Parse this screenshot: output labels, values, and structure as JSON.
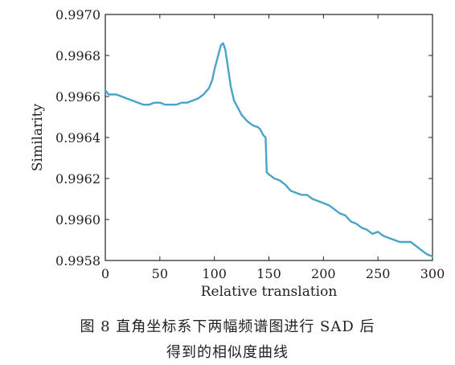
{
  "chart_data": {
    "type": "line",
    "title": "",
    "xlabel": "Relative translation",
    "ylabel": "Similarity",
    "xlim": [
      0,
      300
    ],
    "ylim": [
      0.9958,
      0.997
    ],
    "xticks": [
      0,
      50,
      100,
      150,
      200,
      250,
      300
    ],
    "xtick_labels": [
      "0",
      "50",
      "100",
      "150",
      "200",
      "250",
      "300"
    ],
    "yticks": [
      0.9958,
      0.996,
      0.9962,
      0.9964,
      0.9966,
      0.9968,
      0.997
    ],
    "ytick_labels": [
      "0.9958",
      "0.9960",
      "0.9962",
      "0.9964",
      "0.9966",
      "0.9968",
      "0.9970"
    ],
    "grid": false,
    "series": [
      {
        "color": "#4aa3c8",
        "x": [
          0,
          3,
          6,
          10,
          15,
          20,
          25,
          30,
          35,
          40,
          45,
          50,
          55,
          60,
          65,
          70,
          75,
          80,
          85,
          90,
          95,
          98,
          100,
          103,
          106,
          108,
          110,
          112,
          115,
          118,
          121,
          125,
          130,
          135,
          140,
          142,
          145,
          147,
          148,
          150,
          155,
          160,
          165,
          170,
          175,
          180,
          185,
          190,
          195,
          200,
          205,
          210,
          215,
          220,
          225,
          230,
          235,
          240,
          245,
          250,
          255,
          260,
          265,
          270,
          275,
          280,
          285,
          290,
          295,
          300
        ],
        "y": [
          0.99663,
          0.99661,
          0.99661,
          0.99661,
          0.9966,
          0.99659,
          0.99658,
          0.99657,
          0.99656,
          0.99656,
          0.99657,
          0.99657,
          0.99656,
          0.99656,
          0.99656,
          0.99657,
          0.99657,
          0.99658,
          0.99659,
          0.99661,
          0.99664,
          0.99668,
          0.99673,
          0.99679,
          0.99685,
          0.99686,
          0.99683,
          0.99676,
          0.99665,
          0.99658,
          0.99655,
          0.99651,
          0.99648,
          0.99646,
          0.99645,
          0.99644,
          0.99641,
          0.9964,
          0.99623,
          0.99622,
          0.9962,
          0.99619,
          0.99617,
          0.99614,
          0.99613,
          0.99612,
          0.99612,
          0.9961,
          0.99609,
          0.99608,
          0.99607,
          0.99605,
          0.99603,
          0.99602,
          0.99599,
          0.99598,
          0.99596,
          0.99595,
          0.99593,
          0.99594,
          0.99592,
          0.99591,
          0.9959,
          0.99589,
          0.99589,
          0.99589,
          0.99587,
          0.99585,
          0.99583,
          0.99582
        ]
      }
    ]
  },
  "caption": {
    "line1": "图 8   直角坐标系下两幅频谱图进行 SAD 后",
    "line2": "得到的相似度曲线"
  }
}
